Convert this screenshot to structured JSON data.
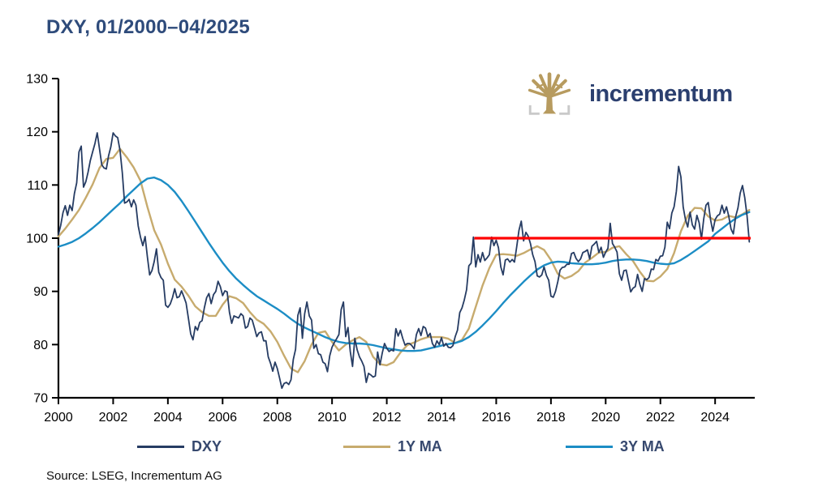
{
  "title": "DXY, 01/2000–04/2025",
  "logo": {
    "text": "incrementum"
  },
  "source": "Source: LSEG, Incrementum AG",
  "colors": {
    "title": "#2E4B7B",
    "legend_text": "#36486E",
    "wordmark": "#2B3F6F",
    "logo_gold": "#B79B5F",
    "logo_bracket": "#C9C9C9",
    "axis": "#000000",
    "dxy": "#263C63",
    "ma1y": "#C7AB6E",
    "ma3y": "#1C8DC5",
    "red_line": "#FF0000"
  },
  "legend": [
    {
      "label": "DXY",
      "color": "#263C63"
    },
    {
      "label": "1Y MA",
      "color": "#C7AB6E"
    },
    {
      "label": "3Y MA",
      "color": "#1C8DC5"
    }
  ],
  "chart_data": {
    "type": "line",
    "title": "DXY, 01/2000–04/2025",
    "xlabel": "",
    "ylabel": "",
    "grid": false,
    "legend_position": "bottom",
    "x_axis": {
      "ticks": [
        2000,
        2002,
        2004,
        2006,
        2008,
        2010,
        2012,
        2014,
        2016,
        2018,
        2020,
        2022,
        2024
      ],
      "range": [
        2000,
        2025.33
      ]
    },
    "y_axis": {
      "ticks": [
        70,
        80,
        90,
        100,
        110,
        120,
        130
      ],
      "range": [
        70,
        130
      ]
    },
    "annotations": [
      {
        "type": "hline",
        "value": 100,
        "x_from": 2015.2,
        "x_to": 2025.3,
        "color": "#FF0000"
      }
    ],
    "series": [
      {
        "name": "DXY",
        "color": "#263C63",
        "width": 1.8,
        "draw_order": 2,
        "x_start": 2000.0,
        "x_step_months": 1,
        "values": [
          100.7,
          102.4,
          104.8,
          106.1,
          104.3,
          106.2,
          105.2,
          108.4,
          110.4,
          116.2,
          117.3,
          109.6,
          110.6,
          112.4,
          114.6,
          116.2,
          117.8,
          119.8,
          116.8,
          113.8,
          113.2,
          113.0,
          115.5,
          117.2,
          119.8,
          119.2,
          118.9,
          116.5,
          112.3,
          106.6,
          106.8,
          107.3,
          105.9,
          107.2,
          106.2,
          102.3,
          100.2,
          98.6,
          100.3,
          96.5,
          93.1,
          93.9,
          95.6,
          98.0,
          93.6,
          92.6,
          92.1,
          87.4,
          87.0,
          87.6,
          88.8,
          90.5,
          88.8,
          89.0,
          90.1,
          89.0,
          87.8,
          85.0,
          82.0,
          80.9,
          83.4,
          82.7,
          84.2,
          84.5,
          86.9,
          88.8,
          89.6,
          87.7,
          89.4,
          90.0,
          91.9,
          90.9,
          89.2,
          90.1,
          89.9,
          86.1,
          84.0,
          85.4,
          85.2,
          85.0,
          85.8,
          85.4,
          83.1,
          83.4,
          85.0,
          84.6,
          83.1,
          81.5,
          82.2,
          82.4,
          80.7,
          80.7,
          77.7,
          76.5,
          75.0,
          76.7,
          75.5,
          73.7,
          71.8,
          72.7,
          72.9,
          72.5,
          73.4,
          77.2,
          79.1,
          85.5,
          86.9,
          81.2,
          85.8,
          88.0,
          85.4,
          84.6,
          79.3,
          80.0,
          78.3,
          78.1,
          76.7,
          76.4,
          74.9,
          77.9,
          79.5,
          80.4,
          81.1,
          81.9,
          86.6,
          88.0,
          81.5,
          83.2,
          78.7,
          75.9,
          81.2,
          79.0,
          77.7,
          76.9,
          75.9,
          72.9,
          74.6,
          74.3,
          73.9,
          74.1,
          78.6,
          76.2,
          78.4,
          80.2,
          79.3,
          78.7,
          79.0,
          78.8,
          83.0,
          81.6,
          82.7,
          81.2,
          79.9,
          80.2,
          80.2,
          79.8,
          79.2,
          81.9,
          83.0,
          81.7,
          83.4,
          83.1,
          81.5,
          82.1,
          80.2,
          79.5,
          80.7,
          80.0,
          81.3,
          79.7,
          80.2,
          79.5,
          79.4,
          79.8,
          81.5,
          82.7,
          86.0,
          86.9,
          88.4,
          90.3,
          94.8,
          95.3,
          100.2,
          94.6,
          96.9,
          95.5,
          97.3,
          95.8,
          96.3,
          96.9,
          100.2,
          98.6,
          99.6,
          98.2,
          94.6,
          93.1,
          95.9,
          96.1,
          95.5,
          96.0,
          95.5,
          98.4,
          101.5,
          103.2,
          99.5,
          101.1,
          100.4,
          99.0,
          96.9,
          95.6,
          92.9,
          92.7,
          93.1,
          94.6,
          93.0,
          92.1,
          89.1,
          88.9,
          90.0,
          91.8,
          94.0,
          94.5,
          94.6,
          95.1,
          95.1,
          97.1,
          97.3,
          96.2,
          95.6,
          96.1,
          97.3,
          97.5,
          97.8,
          96.1,
          98.5,
          98.9,
          99.4,
          97.3,
          98.3,
          96.4,
          97.4,
          98.1,
          102.8,
          99.0,
          98.3,
          97.4,
          93.3,
          92.1,
          93.9,
          94.0,
          91.9,
          89.9,
          90.6,
          90.9,
          93.2,
          91.3,
          90.0,
          92.4,
          92.2,
          92.6,
          94.2,
          94.1,
          96.0,
          95.7,
          96.6,
          96.7,
          98.3,
          103.0,
          101.8,
          104.7,
          105.9,
          108.8,
          113.5,
          111.5,
          105.9,
          103.5,
          102.1,
          104.9,
          102.5,
          101.7,
          104.3,
          102.9,
          99.8,
          103.6,
          106.2,
          106.7,
          103.5,
          101.3,
          103.5,
          104.2,
          104.5,
          106.2,
          104.7,
          105.9,
          104.1,
          101.7,
          100.8,
          104.0,
          105.7,
          108.5,
          109.9,
          107.6,
          104.2,
          99.3
        ]
      },
      {
        "name": "1Y MA",
        "color": "#C7AB6E",
        "width": 2.4,
        "draw_order": 0,
        "x_start": 2000.0,
        "x_step_months": 3,
        "values": [
          100.3,
          101.8,
          103.5,
          105.3,
          107.6,
          110.1,
          113.2,
          114.9,
          115.1,
          116.8,
          115.2,
          113.3,
          110.8,
          105.9,
          101.5,
          98.8,
          95.2,
          92.2,
          90.9,
          89.2,
          87.2,
          86.1,
          85.4,
          85.4,
          87.5,
          89.1,
          88.7,
          87.8,
          86.1,
          84.7,
          83.9,
          82.5,
          80.5,
          77.9,
          75.5,
          74.8,
          76.9,
          80.0,
          82.2,
          82.5,
          80.5,
          78.9,
          80.0,
          80.8,
          81.4,
          80.5,
          77.7,
          76.3,
          76.1,
          76.7,
          78.5,
          79.9,
          80.4,
          81.0,
          81.4,
          81.4,
          81.4,
          81.1,
          80.3,
          80.9,
          83.0,
          87.1,
          91.1,
          94.4,
          96.9,
          97.0,
          96.9,
          96.7,
          97.2,
          97.9,
          98.5,
          97.8,
          95.9,
          93.3,
          92.4,
          92.9,
          93.8,
          95.4,
          96.3,
          97.3,
          97.4,
          98.2,
          98.5,
          97.0,
          95.7,
          93.7,
          92.0,
          91.9,
          92.8,
          94.2,
          97.2,
          101.3,
          104.2,
          105.7,
          105.6,
          104.1,
          103.3,
          103.5,
          104.2,
          103.9,
          104.5,
          105.3
        ]
      },
      {
        "name": "3Y MA",
        "color": "#1C8DC5",
        "width": 2.4,
        "draw_order": 1,
        "x_start": 2000.0,
        "x_step_months": 3,
        "values": [
          98.4,
          98.8,
          99.3,
          100.0,
          100.9,
          101.9,
          103.0,
          104.2,
          105.4,
          106.6,
          107.9,
          109.1,
          110.3,
          111.2,
          111.4,
          110.9,
          110.0,
          108.7,
          107.0,
          105.1,
          103.1,
          101.1,
          99.1,
          97.2,
          95.4,
          93.8,
          92.4,
          91.2,
          90.1,
          89.1,
          88.3,
          87.5,
          86.7,
          85.8,
          84.8,
          83.9,
          83.2,
          82.6,
          82.0,
          81.4,
          80.9,
          80.5,
          80.3,
          80.2,
          80.2,
          80.1,
          79.9,
          79.6,
          79.3,
          79.1,
          78.9,
          78.8,
          78.8,
          78.9,
          79.2,
          79.5,
          79.8,
          80.1,
          80.3,
          80.7,
          81.4,
          82.4,
          83.6,
          84.9,
          86.3,
          87.8,
          89.2,
          90.5,
          91.8,
          93.0,
          94.1,
          94.9,
          95.4,
          95.6,
          95.5,
          95.3,
          95.2,
          95.1,
          95.1,
          95.2,
          95.4,
          95.7,
          95.9,
          96.0,
          96.0,
          95.9,
          95.7,
          95.4,
          95.2,
          95.1,
          95.3,
          95.9,
          96.7,
          97.6,
          98.5,
          99.4,
          100.8,
          101.8,
          102.8,
          103.7,
          104.4,
          104.9
        ]
      }
    ]
  }
}
